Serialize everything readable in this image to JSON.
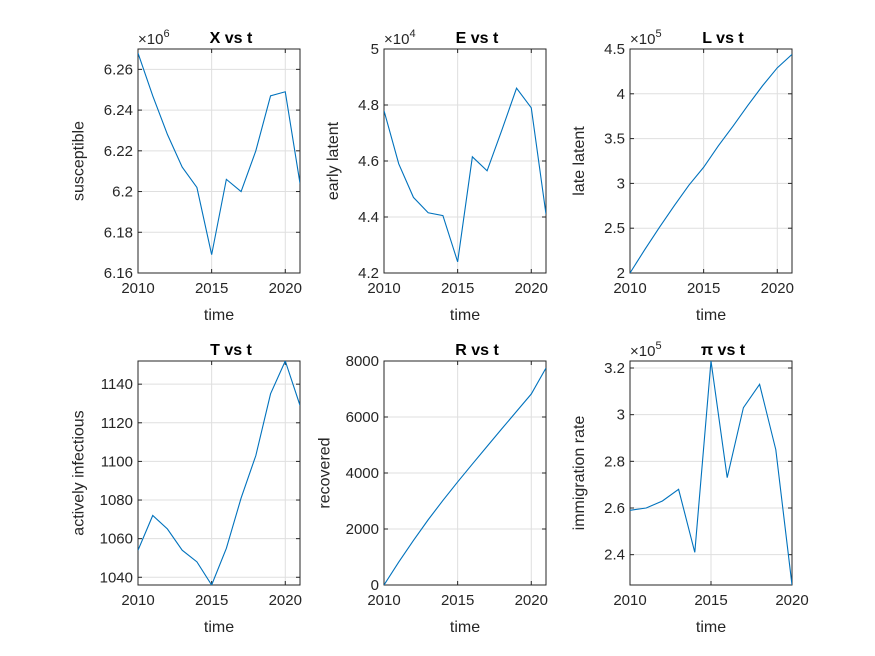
{
  "chart_data": [
    {
      "type": "line",
      "title": "X vs t",
      "xlabel": "time",
      "ylabel": "susceptible",
      "exponent": "6",
      "xlim": [
        2010,
        2021
      ],
      "ylim": [
        6.16,
        6.27
      ],
      "xticks": [
        2010,
        2015,
        2020
      ],
      "yticks": [
        6.16,
        6.18,
        6.2,
        6.22,
        6.24,
        6.26
      ],
      "ytick_labels": [
        "6.16",
        "6.18",
        "6.2",
        "6.22",
        "6.24",
        "6.26"
      ],
      "grid": true,
      "color": "#0072BD",
      "series": [
        {
          "x": [
            2010,
            2011,
            2012,
            2013,
            2014,
            2015,
            2016,
            2017,
            2018,
            2019,
            2020,
            2021
          ],
          "y": [
            6.268,
            6.247,
            6.228,
            6.212,
            6.202,
            6.169,
            6.206,
            6.2,
            6.22,
            6.247,
            6.249,
            6.204
          ]
        }
      ]
    },
    {
      "type": "line",
      "title": "E vs t",
      "xlabel": "time",
      "ylabel": "early latent",
      "exponent": "4",
      "xlim": [
        2010,
        2021
      ],
      "ylim": [
        4.2,
        5.0
      ],
      "xticks": [
        2010,
        2015,
        2020
      ],
      "yticks": [
        4.2,
        4.4,
        4.6,
        4.8,
        5.0
      ],
      "ytick_labels": [
        "4.2",
        "4.4",
        "4.6",
        "4.8",
        "5"
      ],
      "grid": true,
      "color": "#0072BD",
      "series": [
        {
          "x": [
            2010,
            2011,
            2012,
            2013,
            2014,
            2015,
            2016,
            2017,
            2018,
            2019,
            2020,
            2021
          ],
          "y": [
            4.78,
            4.59,
            4.47,
            4.415,
            4.405,
            4.24,
            4.615,
            4.565,
            4.71,
            4.86,
            4.79,
            4.41
          ]
        }
      ]
    },
    {
      "type": "line",
      "title": "L vs t",
      "xlabel": "time",
      "ylabel": "late latent",
      "exponent": "5",
      "xlim": [
        2010,
        2021
      ],
      "ylim": [
        2.0,
        4.5
      ],
      "xticks": [
        2010,
        2015,
        2020
      ],
      "yticks": [
        2.0,
        2.5,
        3.0,
        3.5,
        4.0,
        4.5
      ],
      "ytick_labels": [
        "2",
        "2.5",
        "3",
        "3.5",
        "4",
        "4.5"
      ],
      "grid": true,
      "color": "#0072BD",
      "series": [
        {
          "x": [
            2010,
            2011,
            2012,
            2013,
            2014,
            2015,
            2016,
            2017,
            2018,
            2019,
            2020,
            2021
          ],
          "y": [
            2.0,
            2.26,
            2.51,
            2.75,
            2.98,
            3.18,
            3.42,
            3.64,
            3.87,
            4.09,
            4.29,
            4.44
          ]
        }
      ]
    },
    {
      "type": "line",
      "title": "T vs t",
      "xlabel": "time",
      "ylabel": "actively infectious",
      "exponent": "",
      "xlim": [
        2010,
        2021
      ],
      "ylim": [
        1036,
        1152
      ],
      "xticks": [
        2010,
        2015,
        2020
      ],
      "yticks": [
        1040,
        1060,
        1080,
        1100,
        1120,
        1140
      ],
      "ytick_labels": [
        "1040",
        "1060",
        "1080",
        "1100",
        "1120",
        "1140"
      ],
      "grid": true,
      "color": "#0072BD",
      "series": [
        {
          "x": [
            2010,
            2011,
            2012,
            2013,
            2014,
            2015,
            2016,
            2017,
            2018,
            2019,
            2020,
            2021
          ],
          "y": [
            1054,
            1072,
            1065,
            1054,
            1048,
            1036,
            1055,
            1081,
            1103,
            1135,
            1152,
            1129
          ]
        }
      ]
    },
    {
      "type": "line",
      "title": "R vs t",
      "xlabel": "time",
      "ylabel": "recovered",
      "exponent": "",
      "xlim": [
        2010,
        2021
      ],
      "ylim": [
        0,
        8000
      ],
      "xticks": [
        2010,
        2015,
        2020
      ],
      "yticks": [
        0,
        2000,
        4000,
        6000,
        8000
      ],
      "ytick_labels": [
        "0",
        "2000",
        "4000",
        "6000",
        "8000"
      ],
      "grid": true,
      "color": "#0072BD",
      "series": [
        {
          "x": [
            2010,
            2011,
            2012,
            2013,
            2014,
            2015,
            2016,
            2017,
            2018,
            2019,
            2020,
            2021
          ],
          "y": [
            0,
            820,
            1590,
            2330,
            3020,
            3680,
            4320,
            4950,
            5580,
            6200,
            6820,
            7750
          ]
        }
      ]
    },
    {
      "type": "line",
      "title": "π vs t",
      "xlabel": "time",
      "ylabel": "immigration rate",
      "exponent": "5",
      "xlim": [
        2010,
        2020
      ],
      "ylim": [
        2.27,
        3.23
      ],
      "xticks": [
        2010,
        2015,
        2020
      ],
      "yticks": [
        2.4,
        2.6,
        2.8,
        3.0,
        3.2
      ],
      "ytick_labels": [
        "2.4",
        "2.6",
        "2.8",
        "3",
        "3.2"
      ],
      "grid": true,
      "color": "#0072BD",
      "series": [
        {
          "x": [
            2010,
            2011,
            2012,
            2013,
            2014,
            2015,
            2016,
            2017,
            2018,
            2019,
            2020
          ],
          "y": [
            2.59,
            2.6,
            2.63,
            2.68,
            2.41,
            3.23,
            2.73,
            3.03,
            3.13,
            2.85,
            2.27
          ]
        }
      ]
    }
  ]
}
